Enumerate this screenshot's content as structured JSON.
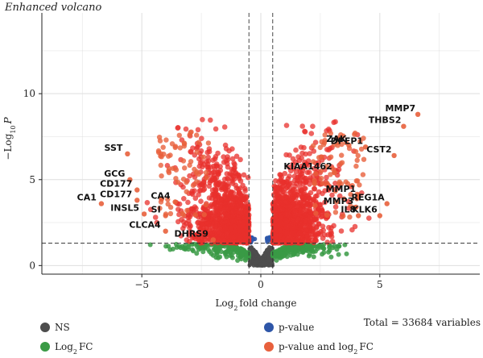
{
  "chart_data": {
    "type": "scatter",
    "title": "Enhanced volcano",
    "xlabel": "Log2 fold change",
    "ylabel": "-Log10 P",
    "xlim": [
      -9.2,
      9.2
    ],
    "ylim": [
      -0.5,
      14.7
    ],
    "x_ticks": [
      -5,
      0,
      5
    ],
    "y_ticks": [
      0,
      5,
      10
    ],
    "grid": true,
    "fc_cutoff": 0.5,
    "p_cutoff_log10": 1.3,
    "caption": "Total = 33684 variables",
    "legend_position": "bottom",
    "colors": {
      "NS": "#4d4d4d",
      "log2fc": "#3a9a45",
      "pvalue": "#2e56a8",
      "both": "#e8302c",
      "both_sparse": "#e8603c"
    },
    "series": [
      {
        "name": "NS",
        "color": "#4d4d4d"
      },
      {
        "name": "p-value",
        "color": "#2e56a8"
      },
      {
        "name": "Log2 FC",
        "color": "#3a9a45"
      },
      {
        "name": "p-value and log2 FC",
        "color": "#e8603c"
      }
    ],
    "labeled_genes": [
      {
        "label": "MMP7",
        "x": 6.6,
        "y": 8.8
      },
      {
        "label": "THBS2",
        "x": 6.0,
        "y": 8.1
      },
      {
        "label": "ZAK",
        "x": 3.7,
        "y": 7.0
      },
      {
        "label": "DPEP1",
        "x": 4.4,
        "y": 6.9
      },
      {
        "label": "CST2",
        "x": 5.6,
        "y": 6.4
      },
      {
        "label": "SST",
        "x": -5.6,
        "y": 6.5
      },
      {
        "label": "KIAA1462",
        "x": 3.1,
        "y": 5.4
      },
      {
        "label": "MMP1",
        "x": 4.1,
        "y": 4.1
      },
      {
        "label": "MMP3",
        "x": 4.0,
        "y": 3.4
      },
      {
        "label": "REG1A",
        "x": 5.3,
        "y": 3.6
      },
      {
        "label": "IL8",
        "x": 4.1,
        "y": 2.9
      },
      {
        "label": "KLK6",
        "x": 5.0,
        "y": 2.9
      },
      {
        "label": "GCG",
        "x": -5.5,
        "y": 5.0
      },
      {
        "label": "CD177",
        "x": -5.2,
        "y": 4.4
      },
      {
        "label": "CD177",
        "x": -5.2,
        "y": 3.8
      },
      {
        "label": "CA4",
        "x": -3.6,
        "y": 3.7
      },
      {
        "label": "CA1",
        "x": -6.7,
        "y": 3.6
      },
      {
        "label": "INSL5",
        "x": -4.9,
        "y": 3.0
      },
      {
        "label": "SI",
        "x": -4.0,
        "y": 2.9
      },
      {
        "label": "CLCA4",
        "x": -4.0,
        "y": 2.0
      },
      {
        "label": "DHRS9",
        "x": -2.0,
        "y": 1.5
      }
    ]
  }
}
